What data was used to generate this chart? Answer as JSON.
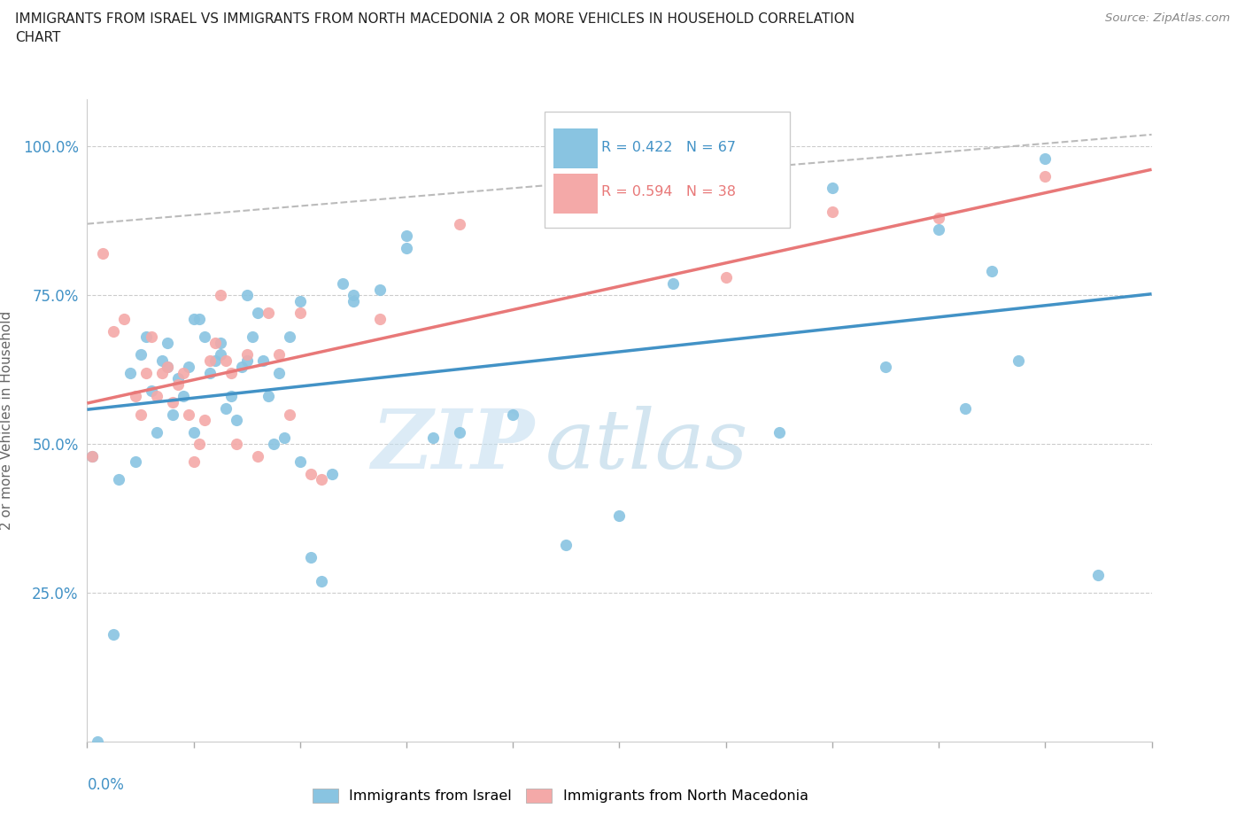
{
  "title_line1": "IMMIGRANTS FROM ISRAEL VS IMMIGRANTS FROM NORTH MACEDONIA 2 OR MORE VEHICLES IN HOUSEHOLD CORRELATION",
  "title_line2": "CHART",
  "source": "Source: ZipAtlas.com",
  "ylabel": "2 or more Vehicles in Household",
  "ytick_labels": [
    "100.0%",
    "75.0%",
    "50.0%",
    "25.0%"
  ],
  "ytick_values": [
    1.0,
    0.75,
    0.5,
    0.25
  ],
  "xmin": 0.0,
  "xmax": 0.2,
  "ymin": 0.0,
  "ymax": 1.08,
  "israel_color": "#89c4e1",
  "macedonia_color": "#f4a9a8",
  "israel_line_color": "#4292c6",
  "macedonia_line_color": "#e87878",
  "grey_line_color": "#bbbbbb",
  "israel_R": 0.422,
  "israel_N": 67,
  "macedonia_R": 0.594,
  "macedonia_N": 38,
  "watermark_zip": "ZIP",
  "watermark_atlas": "atlas",
  "watermark_color": "#cce5f5",
  "israel_scatter_x": [
    0.001,
    0.002,
    0.005,
    0.006,
    0.008,
    0.009,
    0.01,
    0.011,
    0.012,
    0.013,
    0.014,
    0.015,
    0.015,
    0.016,
    0.017,
    0.018,
    0.019,
    0.02,
    0.02,
    0.021,
    0.022,
    0.023,
    0.024,
    0.025,
    0.025,
    0.026,
    0.027,
    0.028,
    0.029,
    0.03,
    0.03,
    0.031,
    0.032,
    0.033,
    0.034,
    0.035,
    0.036,
    0.037,
    0.038,
    0.04,
    0.04,
    0.042,
    0.044,
    0.046,
    0.048,
    0.05,
    0.05,
    0.055,
    0.06,
    0.06,
    0.065,
    0.07,
    0.08,
    0.09,
    0.1,
    0.11,
    0.12,
    0.12,
    0.13,
    0.14,
    0.15,
    0.16,
    0.165,
    0.17,
    0.175,
    0.18,
    0.19
  ],
  "israel_scatter_y": [
    0.48,
    0.0,
    0.18,
    0.44,
    0.62,
    0.47,
    0.65,
    0.68,
    0.59,
    0.52,
    0.64,
    0.67,
    0.63,
    0.55,
    0.61,
    0.58,
    0.63,
    0.52,
    0.71,
    0.71,
    0.68,
    0.62,
    0.64,
    0.67,
    0.65,
    0.56,
    0.58,
    0.54,
    0.63,
    0.75,
    0.64,
    0.68,
    0.72,
    0.64,
    0.58,
    0.5,
    0.62,
    0.51,
    0.68,
    0.47,
    0.74,
    0.31,
    0.27,
    0.45,
    0.77,
    0.75,
    0.74,
    0.76,
    0.83,
    0.85,
    0.51,
    0.52,
    0.55,
    0.33,
    0.38,
    0.77,
    0.89,
    1.0,
    0.52,
    0.93,
    0.63,
    0.86,
    0.56,
    0.79,
    0.64,
    0.98,
    0.28
  ],
  "macedonia_scatter_x": [
    0.001,
    0.003,
    0.005,
    0.007,
    0.009,
    0.01,
    0.011,
    0.012,
    0.013,
    0.014,
    0.015,
    0.016,
    0.017,
    0.018,
    0.019,
    0.02,
    0.021,
    0.022,
    0.023,
    0.024,
    0.025,
    0.026,
    0.027,
    0.028,
    0.03,
    0.032,
    0.034,
    0.036,
    0.038,
    0.04,
    0.042,
    0.044,
    0.055,
    0.07,
    0.12,
    0.14,
    0.16,
    0.18
  ],
  "macedonia_scatter_y": [
    0.48,
    0.82,
    0.69,
    0.71,
    0.58,
    0.55,
    0.62,
    0.68,
    0.58,
    0.62,
    0.63,
    0.57,
    0.6,
    0.62,
    0.55,
    0.47,
    0.5,
    0.54,
    0.64,
    0.67,
    0.75,
    0.64,
    0.62,
    0.5,
    0.65,
    0.48,
    0.72,
    0.65,
    0.55,
    0.72,
    0.45,
    0.44,
    0.71,
    0.87,
    0.78,
    0.89,
    0.88,
    0.95
  ],
  "israel_trend_x": [
    0.0,
    0.2
  ],
  "israel_trend_y": [
    0.44,
    0.97
  ],
  "macedonia_trend_x": [
    0.0,
    0.2
  ],
  "macedonia_trend_y": [
    0.5,
    0.97
  ],
  "grey_trend_x": [
    0.0,
    0.2
  ],
  "grey_trend_y": [
    0.87,
    1.02
  ]
}
